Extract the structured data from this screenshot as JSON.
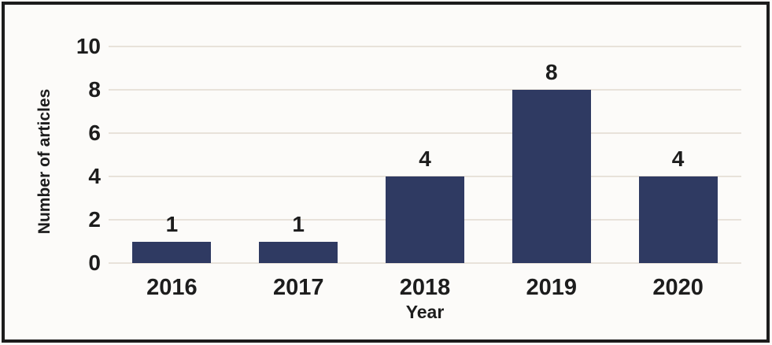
{
  "figure": {
    "frame_color": "#1c1c1c",
    "background": "#fcfbf9",
    "text_color": "#1d1d1d"
  },
  "chart_data": {
    "type": "bar",
    "title": "",
    "categories": [
      "2016",
      "2017",
      "2018",
      "2019",
      "2020"
    ],
    "values": [
      1,
      1,
      4,
      8,
      4
    ],
    "xlabel": "Year",
    "ylabel": "Number of articles",
    "yticks": [
      0,
      2,
      4,
      6,
      8,
      10
    ],
    "ylim": [
      0,
      10
    ],
    "grid": "horizontal",
    "legend_position": "none",
    "bar_color": "#2f3a62",
    "gridline_color": "#e8e2da",
    "value_labels_shown": true
  }
}
